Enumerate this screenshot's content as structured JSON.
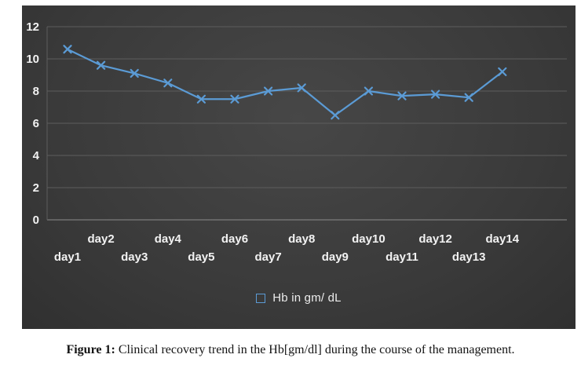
{
  "chart_data": {
    "type": "line",
    "categories": [
      "day1",
      "day2",
      "day3",
      "day4",
      "day5",
      "day6",
      "day7",
      "day8",
      "day9",
      "day10",
      "day11",
      "day12",
      "day13",
      "day14"
    ],
    "values": [
      10.6,
      9.6,
      9.1,
      8.5,
      7.5,
      7.5,
      8.0,
      8.2,
      6.5,
      8.0,
      7.7,
      7.8,
      7.6,
      9.2
    ],
    "title": "",
    "xlabel": "",
    "ylabel": "",
    "ylim": [
      0,
      12
    ],
    "yticks": [
      0,
      2,
      4,
      6,
      8,
      10,
      12
    ],
    "grid": true,
    "legend": [
      "Hb in gm/ dL"
    ],
    "legend_position": "bottom",
    "line_color": "#5b9bd5",
    "marker": "x",
    "plot_background": "#3b3b3b",
    "label_color": "#f2f2f2"
  },
  "caption": {
    "prefix": "Figure 1:",
    "text": "Clinical recovery trend in the Hb[gm/dl] during the course of the management."
  }
}
